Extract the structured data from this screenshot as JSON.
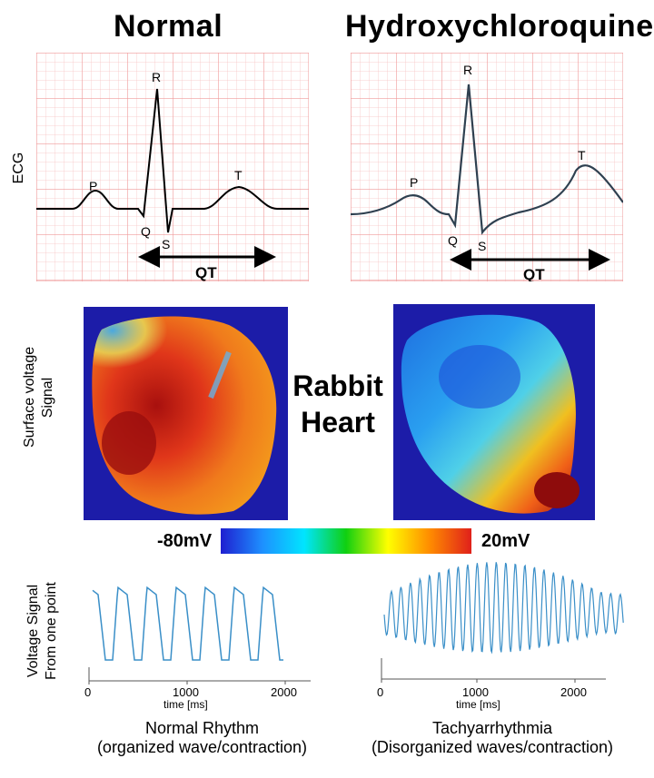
{
  "titles": {
    "left": "Normal",
    "right": "Hydroxychloroquine"
  },
  "row_labels": {
    "ecg": "ECG",
    "surface_line1": "Surface voltage",
    "surface_line2": "Signal",
    "voltage_line1": "Voltage  Signal",
    "voltage_line2": "From one point"
  },
  "ecg_waves": {
    "p": "P",
    "q": "Q",
    "r": "R",
    "s": "S",
    "t": "T",
    "qt": "QT"
  },
  "heart_label": {
    "line1": "Rabbit",
    "line2": "Heart"
  },
  "colorbar": {
    "min_label": "-80mV",
    "max_label": "20mV",
    "colors": [
      "#1f1fd0",
      "#1e90ff",
      "#00e5ff",
      "#10d010",
      "#ffff00",
      "#ff8c00",
      "#e0201b"
    ]
  },
  "traces": {
    "left": {
      "ticks": [
        "0",
        "1000",
        "2000"
      ],
      "xlabel": "time [ms]",
      "caption_line1": "Normal Rhythm",
      "caption_line2": "(organized wave/contraction)"
    },
    "right": {
      "ticks": [
        "0",
        "1000",
        "2000"
      ],
      "xlabel": "time [ms]",
      "caption_line1": "Tachyarrhythmia",
      "caption_line2": "(Disorganized waves/contraction)"
    }
  },
  "colors": {
    "ecg_grid": "#f2a7a7",
    "trace": "#3a8fc8",
    "heart_bg": "#1c1ca8"
  }
}
